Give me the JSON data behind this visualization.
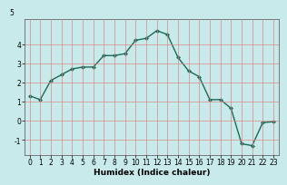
{
  "x": [
    0,
    1,
    2,
    3,
    4,
    5,
    6,
    7,
    8,
    9,
    10,
    11,
    12,
    13,
    14,
    15,
    16,
    17,
    18,
    19,
    20,
    21,
    22,
    23
  ],
  "y": [
    1.3,
    1.1,
    2.1,
    2.4,
    2.7,
    2.8,
    2.8,
    3.4,
    3.4,
    3.5,
    4.2,
    4.3,
    4.7,
    4.5,
    3.3,
    2.6,
    2.3,
    1.1,
    1.1,
    0.65,
    -1.2,
    -1.3,
    -0.1,
    -0.05
  ],
  "title": "",
  "xlabel": "Humidex (Indice chaleur)",
  "ylabel": "",
  "line_color": "#1a6b55",
  "marker": "D",
  "marker_size": 2.0,
  "line_width": 1.0,
  "bg_color": "#c8eaea",
  "grid_color": "#dd8888",
  "ylim": [
    -1.8,
    5.3
  ],
  "xlim": [
    -0.5,
    23.5
  ],
  "yticks": [
    -1,
    0,
    1,
    2,
    3,
    4
  ],
  "xticks": [
    0,
    1,
    2,
    3,
    4,
    5,
    6,
    7,
    8,
    9,
    10,
    11,
    12,
    13,
    14,
    15,
    16,
    17,
    18,
    19,
    20,
    21,
    22,
    23
  ],
  "top_label": "5",
  "tick_fontsize": 5.5,
  "xlabel_fontsize": 6.5
}
